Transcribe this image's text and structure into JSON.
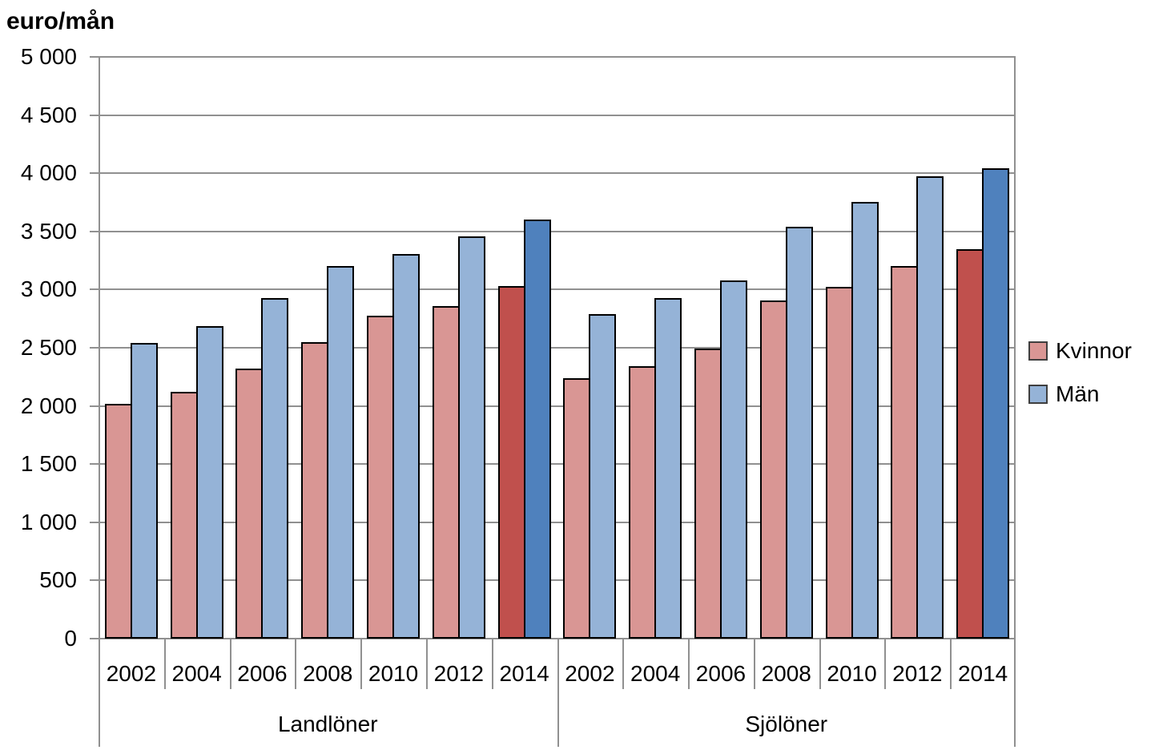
{
  "title": "euro/mån",
  "legend": {
    "items": [
      {
        "label": "Kvinnor"
      },
      {
        "label": "Män"
      }
    ]
  },
  "colors": {
    "kvinnor": "#D99694",
    "man": "#95B3D7",
    "kvinnor_highlight": "#C0504D",
    "man_highlight": "#4F81BD",
    "bar_border": "#000000",
    "gridline": "#909090",
    "text": "#000000"
  },
  "chart_data": {
    "type": "bar",
    "title": "euro/mån",
    "ylabel": "euro/mån",
    "xlabel": "",
    "ylim": [
      0,
      5000
    ],
    "ytick_step": 500,
    "ytick_labels": [
      "5 000",
      "4 500",
      "4 000",
      "3 500",
      "3 000",
      "2 500",
      "2 000",
      "1 500",
      "1 000",
      "500",
      "0"
    ],
    "grid": "horizontal",
    "legend": [
      "Kvinnor",
      "Män"
    ],
    "legend_position": "right",
    "highlight_category": "2014",
    "categories": [
      "2002",
      "2004",
      "2006",
      "2008",
      "2010",
      "2012",
      "2014"
    ],
    "groups": [
      {
        "label": "Landlöner",
        "series": [
          {
            "name": "Kvinnor",
            "values": [
              2015,
              2120,
              2320,
              2545,
              2775,
              2860,
              3030
            ]
          },
          {
            "name": "Män",
            "values": [
              2540,
              2685,
              2930,
              3200,
              3305,
              3455,
              3605
            ]
          }
        ]
      },
      {
        "label": "Sjölöner",
        "series": [
          {
            "name": "Kvinnor",
            "values": [
              2235,
              2345,
              2490,
              2905,
              3020,
              3200,
              3345
            ]
          },
          {
            "name": "Män",
            "values": [
              2790,
              2930,
              3080,
              3540,
              3750,
              3975,
              4040
            ]
          }
        ]
      }
    ]
  }
}
